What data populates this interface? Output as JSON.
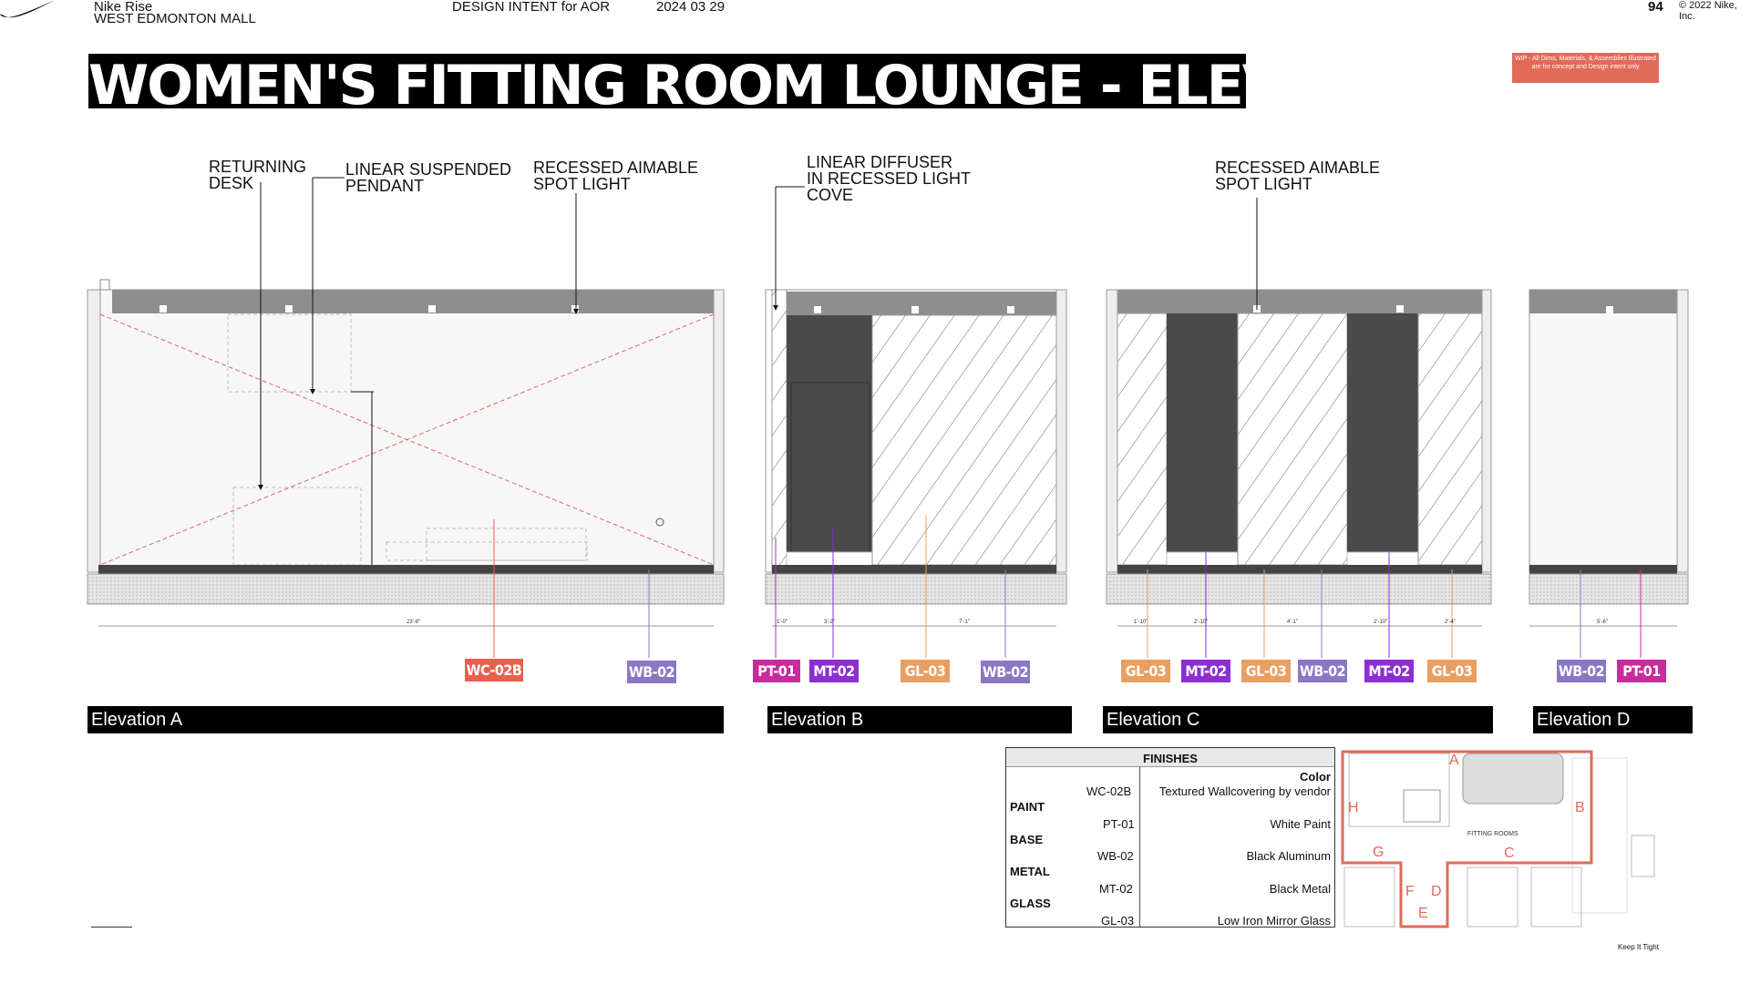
{
  "header": {
    "project": "Nike Rise",
    "location": "WEST EDMONTON MALL",
    "phase": "DESIGN INTENT for AOR",
    "date": "2024 03 29",
    "page_number": "94",
    "copyright": "© 2022 Nike, Inc."
  },
  "title": "WOMEN'S FITTING ROOM LOUNGE - ELEVATIONS",
  "wip_note": "WIP - All Dims, Materials, & Assemblies illustrated are for concept and Design intent only",
  "callouts": {
    "returning_desk": [
      "RETURNING",
      "DESK"
    ],
    "linear_pendant": [
      "LINEAR SUSPENDED",
      "PENDANT"
    ],
    "spot_light_a": [
      "RECESSED AIMABLE",
      "SPOT LIGHT"
    ],
    "linear_diffuser": [
      "LINEAR DIFFUSER",
      "IN RECESSED LIGHT",
      "COVE"
    ],
    "spot_light_c": [
      "RECESSED AIMABLE",
      "SPOT LIGHT"
    ]
  },
  "dimensions": {
    "a_width": "23'-6\"",
    "b_1": "1'-0\"",
    "b_2": "3'-2\"",
    "b_3": "7'-1\"",
    "c_1": "1'-10\"",
    "c_2": "2'-10\"",
    "c_3": "4'-1\"",
    "c_4": "2'-10\"",
    "c_5": "2'-4\"",
    "d_1": "5'-6\""
  },
  "material_tags": {
    "a": [
      "WC-02B",
      "WB-02"
    ],
    "b": [
      "PT-01",
      "MT-02",
      "GL-03",
      "WB-02"
    ],
    "c": [
      "GL-03",
      "MT-02",
      "GL-03",
      "WB-02",
      "MT-02",
      "GL-03"
    ],
    "d": [
      "WB-02",
      "PT-01"
    ]
  },
  "elevations": [
    "Elevation A",
    "Elevation B",
    "Elevation C",
    "Elevation D"
  ],
  "finishes": {
    "title": "FINISHES",
    "color_header": "Color",
    "rows": [
      {
        "category": "",
        "code": "WC-02B",
        "desc": "Textured Wallcovering by vendor"
      },
      {
        "category": "PAINT",
        "code": "PT-01",
        "desc": "White Paint"
      },
      {
        "category": "BASE",
        "code": "WB-02",
        "desc": "Black Aluminum"
      },
      {
        "category": "METAL",
        "code": "MT-02",
        "desc": "Black Metal"
      },
      {
        "category": "GLASS",
        "code": "GL-03",
        "desc": "Low Iron Mirror Glass"
      }
    ]
  },
  "key_plan": {
    "room_label": "FITTING ROOMS",
    "letters": [
      "A",
      "B",
      "C",
      "D",
      "E",
      "F",
      "G",
      "H"
    ]
  },
  "footer_note": "Keep It Tight",
  "colors": {
    "wallcovering": "#e9604f",
    "base": "#8a78c4",
    "paint": "#c82b9c",
    "metal": "#8b2fcf",
    "glass": "#e89f62",
    "accent_red": "#e26a59"
  }
}
